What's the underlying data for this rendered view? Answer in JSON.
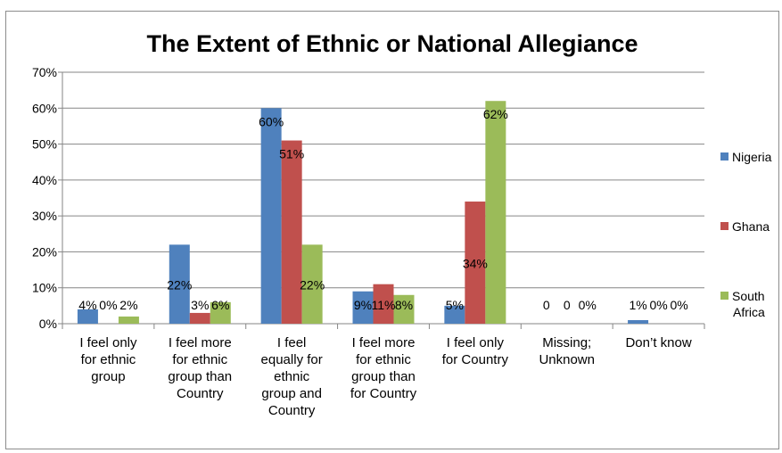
{
  "chart_data": {
    "type": "bar",
    "title": "The Extent of Ethnic or National Allegiance",
    "xlabel": "",
    "ylabel": "",
    "ylim": [
      0,
      70
    ],
    "ytick_step": 10,
    "ytick_format": "percent",
    "grid": true,
    "legend_position": "right",
    "categories": [
      [
        "I feel only",
        "for ethnic",
        "group"
      ],
      [
        "I feel more",
        "for ethnic",
        "group than",
        "Country"
      ],
      [
        "I feel",
        "equally for",
        "ethnic",
        "group and",
        "Country"
      ],
      [
        "I feel more",
        "for ethnic",
        "group than",
        "for Country"
      ],
      [
        "I feel only",
        "for Country"
      ],
      [
        "Missing;",
        "Unknown"
      ],
      [
        "Don’t know"
      ]
    ],
    "series": [
      {
        "name": "Nigeria",
        "legend_lines": [
          "Nigeria"
        ],
        "color": "#4f81bd",
        "values": [
          4,
          22,
          60,
          9,
          5,
          0,
          1
        ],
        "labels": [
          "4%",
          "22%",
          "60%",
          "9%",
          "5%",
          "0",
          "1%"
        ]
      },
      {
        "name": "Ghana",
        "legend_lines": [
          "Ghana"
        ],
        "color": "#c0504d",
        "values": [
          0,
          3,
          51,
          11,
          34,
          0,
          0
        ],
        "labels": [
          "0%",
          "3%",
          "51%",
          "11%",
          "34%",
          "0",
          "0%"
        ]
      },
      {
        "name": "South Africa",
        "legend_lines": [
          "South",
          "Africa"
        ],
        "color": "#9bbb59",
        "values": [
          2,
          6,
          22,
          8,
          62,
          0,
          0
        ],
        "labels": [
          "2%",
          "6%",
          "22%",
          "8%",
          "62%",
          "0%",
          "0%"
        ]
      }
    ]
  }
}
